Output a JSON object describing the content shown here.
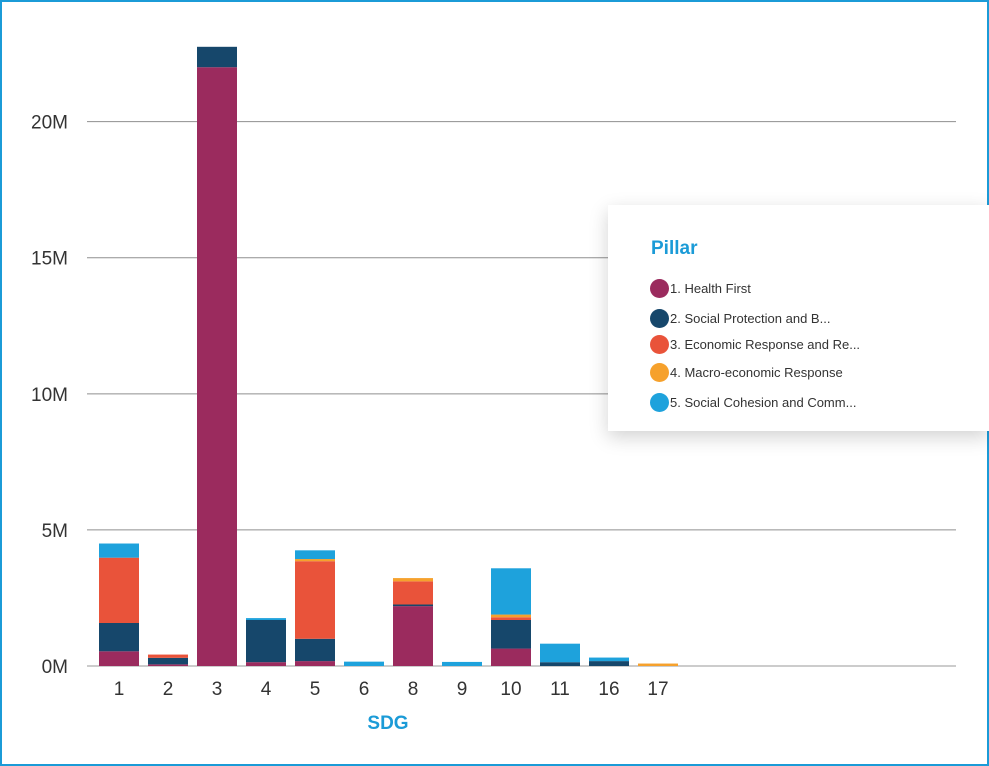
{
  "chart_data": {
    "type": "bar",
    "stacked": true,
    "xlabel": "SDG",
    "categories": [
      "1",
      "2",
      "3",
      "4",
      "5",
      "6",
      "8",
      "9",
      "10",
      "11",
      "16",
      "17"
    ],
    "ylim": [
      0,
      23000000
    ],
    "y_ticks": [
      {
        "value": 0,
        "label": "0M"
      },
      {
        "value": 5000000,
        "label": "5M"
      },
      {
        "value": 10000000,
        "label": "10M"
      },
      {
        "value": 15000000,
        "label": "15M"
      },
      {
        "value": 20000000,
        "label": "20M"
      }
    ],
    "grid": true,
    "legend": {
      "title": "Pillar",
      "placement": "right"
    },
    "series": [
      {
        "name": "1. Health First",
        "color": "#9b2b5e",
        "values": [
          540000,
          60000,
          22000000,
          140000,
          180000,
          0,
          2200000,
          0,
          640000,
          0,
          0,
          0
        ]
      },
      {
        "name": "2. Social Protection and B...",
        "color": "#16476b",
        "values": [
          1040000,
          240000,
          750000,
          1550000,
          820000,
          0,
          60000,
          0,
          1050000,
          140000,
          180000,
          0
        ]
      },
      {
        "name": "3. Economic Response and Re...",
        "color": "#e9533a",
        "values": [
          2400000,
          120000,
          0,
          0,
          2850000,
          0,
          850000,
          0,
          100000,
          0,
          0,
          0
        ]
      },
      {
        "name": "4. Macro-economic Response",
        "color": "#f6a12c",
        "values": [
          0,
          0,
          0,
          0,
          80000,
          0,
          120000,
          0,
          100000,
          0,
          0,
          90000
        ]
      },
      {
        "name": "5. Social Cohesion and Comm...",
        "color": "#1ea2dc",
        "values": [
          520000,
          0,
          0,
          70000,
          320000,
          160000,
          0,
          150000,
          1700000,
          680000,
          130000,
          0
        ]
      }
    ]
  }
}
